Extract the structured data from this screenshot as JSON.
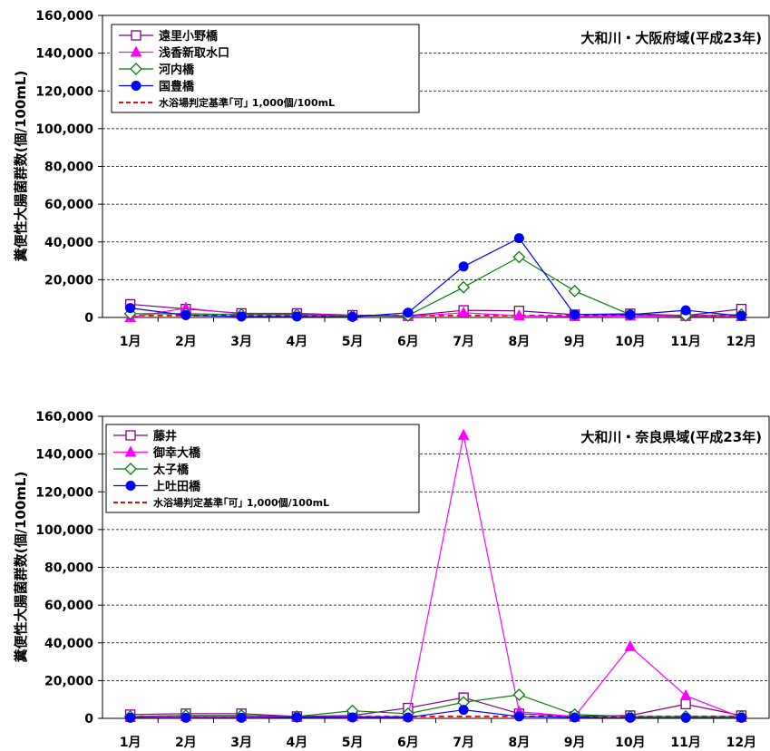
{
  "months": [
    "1月",
    "2月",
    "3月",
    "4月",
    "5月",
    "6月",
    "7月",
    "8月",
    "9月",
    "10月",
    "11月",
    "12月"
  ],
  "standard_line_color": "#ff0000",
  "chart_data": [
    {
      "type": "line",
      "title": "大和川・大阪府域(平成23年)",
      "ylabel": "糞便性大腸菌群数(個/100mL)",
      "ylim": [
        0,
        160000
      ],
      "yticks": [
        0,
        20000,
        40000,
        60000,
        80000,
        100000,
        120000,
        140000,
        160000
      ],
      "ytick_labels": [
        "0",
        "20,000",
        "40,000",
        "60,000",
        "80,000",
        "100,000",
        "120,000",
        "140,000",
        "160,000"
      ],
      "grid": "horizontal dashed",
      "legend_position": "top-left",
      "categories": [
        "1月",
        "2月",
        "3月",
        "4月",
        "5月",
        "6月",
        "7月",
        "8月",
        "9月",
        "10月",
        "11月",
        "12月"
      ],
      "series": [
        {
          "name": "遠里小野橋",
          "marker": "square-open",
          "color": "#800080",
          "values": [
            7000,
            4500,
            2200,
            2200,
            1200,
            900,
            3800,
            3500,
            1500,
            2000,
            1000,
            4500
          ]
        },
        {
          "name": "浅香新取水口",
          "marker": "triangle-filled",
          "color": "#ff00ff",
          "values": [
            0,
            5000,
            1800,
            1800,
            1000,
            500,
            2500,
            900,
            500,
            800,
            500,
            500
          ]
        },
        {
          "name": "河内橋",
          "marker": "diamond-open",
          "color": "#008000",
          "values": [
            2000,
            2000,
            1500,
            1500,
            800,
            1000,
            16000,
            32000,
            14000,
            1500,
            1000,
            1500
          ]
        },
        {
          "name": "国豊橋",
          "marker": "circle-filled",
          "color": "#0000ff",
          "values": [
            5000,
            1200,
            500,
            500,
            300,
            2500,
            27000,
            42000,
            1500,
            1500,
            3800,
            800
          ]
        }
      ],
      "reference_line": {
        "name": "水浴場判定基準｢可｣ 1,000個/100mL",
        "value": 1000,
        "color": "#ff0000",
        "style": "dashed"
      }
    },
    {
      "type": "line",
      "title": "大和川・奈良県域(平成23年)",
      "ylabel": "糞便性大腸菌群数(個/100mL)",
      "ylim": [
        0,
        160000
      ],
      "yticks": [
        0,
        20000,
        40000,
        60000,
        80000,
        100000,
        120000,
        140000,
        160000
      ],
      "ytick_labels": [
        "0",
        "20,000",
        "40,000",
        "60,000",
        "80,000",
        "100,000",
        "120,000",
        "140,000",
        "160,000"
      ],
      "grid": "horizontal dashed",
      "legend_position": "top-left",
      "categories": [
        "1月",
        "2月",
        "3月",
        "4月",
        "5月",
        "6月",
        "7月",
        "8月",
        "9月",
        "10月",
        "11月",
        "12月"
      ],
      "series": [
        {
          "name": "藤井",
          "marker": "square-open",
          "color": "#800080",
          "values": [
            2000,
            2500,
            2500,
            1000,
            1500,
            5500,
            11000,
            2500,
            1000,
            1500,
            7500,
            1500
          ]
        },
        {
          "name": "御幸大橋",
          "marker": "triangle-filled",
          "color": "#ff00ff",
          "values": [
            500,
            1000,
            1000,
            500,
            1000,
            1000,
            150000,
            3500,
            1000,
            38000,
            12000,
            500
          ]
        },
        {
          "name": "太子橋",
          "marker": "diamond-open",
          "color": "#008000",
          "values": [
            1000,
            1500,
            1500,
            1000,
            4000,
            2500,
            8500,
            12500,
            2000,
            1000,
            1000,
            1000
          ]
        },
        {
          "name": "上吐田橋",
          "marker": "circle-filled",
          "color": "#0000ff",
          "values": [
            300,
            300,
            300,
            500,
            500,
            500,
            4500,
            1000,
            500,
            300,
            300,
            300
          ]
        }
      ],
      "reference_line": {
        "name": "水浴場判定基準｢可｣ 1,000個/100mL",
        "value": 1000,
        "color": "#ff0000",
        "style": "dashed"
      }
    }
  ]
}
